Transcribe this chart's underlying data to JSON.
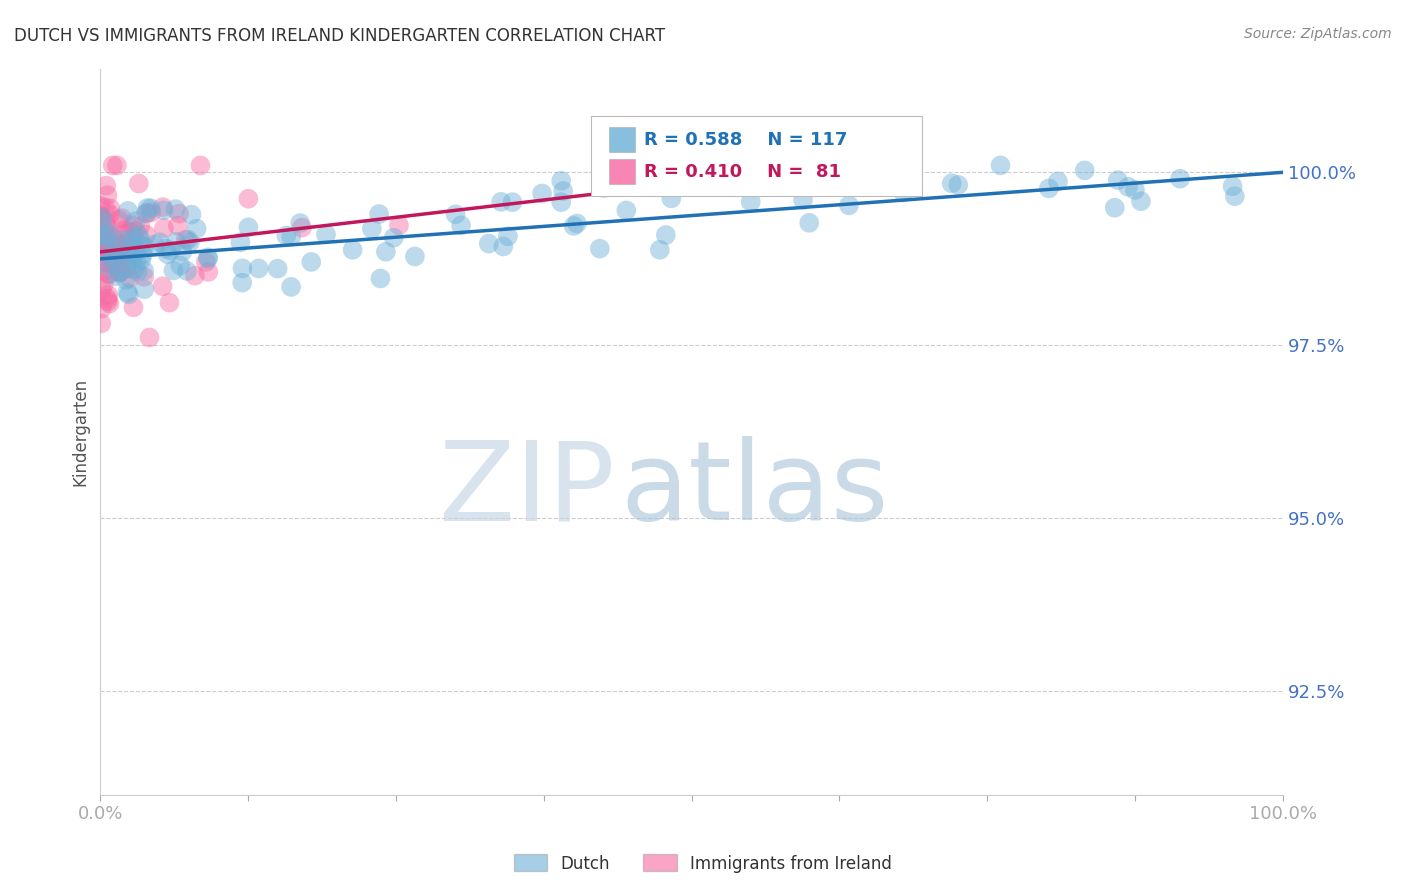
{
  "title": "DUTCH VS IMMIGRANTS FROM IRELAND KINDERGARTEN CORRELATION CHART",
  "source": "Source: ZipAtlas.com",
  "ylabel": "Kindergarten",
  "ytick_labels": [
    "100.0%",
    "97.5%",
    "95.0%",
    "92.5%"
  ],
  "ytick_values": [
    1.0,
    0.975,
    0.95,
    0.925
  ],
  "xlim": [
    0.0,
    1.0
  ],
  "ylim": [
    0.91,
    1.015
  ],
  "legend_dutch": "Dutch",
  "legend_ireland": "Immigrants from Ireland",
  "R_dutch": 0.588,
  "N_dutch": 117,
  "R_ireland": 0.41,
  "N_ireland": 81,
  "dutch_color": "#6baed6",
  "ireland_color": "#f768a1",
  "dutch_line_color": "#2171b5",
  "ireland_line_color": "#c2185b",
  "watermark_zip": "ZIP",
  "watermark_atlas": "atlas",
  "background_color": "#ffffff",
  "grid_color": "#cccccc",
  "title_color": "#333333",
  "source_color": "#888888",
  "axis_label_color": "#4472c4"
}
